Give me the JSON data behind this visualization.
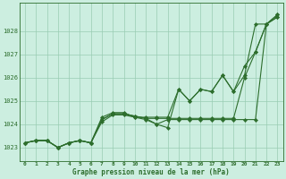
{
  "title": "Graphe pression niveau de la mer (hPa)",
  "background_color": "#cceee0",
  "grid_color": "#99ccb3",
  "line_color": "#2d6e2d",
  "xlim": [
    -0.5,
    23.5
  ],
  "ylim": [
    1022.4,
    1029.2
  ],
  "yticks": [
    1023,
    1024,
    1025,
    1026,
    1027,
    1028
  ],
  "xticks": [
    0,
    1,
    2,
    3,
    4,
    5,
    6,
    7,
    8,
    9,
    10,
    11,
    12,
    13,
    14,
    15,
    16,
    17,
    18,
    19,
    20,
    21,
    22,
    23
  ],
  "series": [
    [
      1023.2,
      1023.3,
      1023.3,
      1023.0,
      1023.2,
      1023.3,
      1023.2,
      1024.3,
      1024.5,
      1024.5,
      1024.3,
      1024.3,
      1024.3,
      1024.3,
      1025.5,
      1025.0,
      1025.5,
      1025.4,
      1026.1,
      1025.4,
      1026.1,
      1028.3,
      1028.3,
      1028.6
    ],
    [
      1023.2,
      1023.3,
      1023.3,
      1023.0,
      1023.2,
      1023.3,
      1023.2,
      1024.1,
      1024.4,
      1024.4,
      1024.3,
      1024.2,
      1024.0,
      1023.85,
      1025.5,
      1025.0,
      1025.5,
      1025.4,
      1026.1,
      1025.4,
      1026.5,
      1027.1,
      1028.3,
      1028.6
    ],
    [
      1023.2,
      1023.3,
      1023.3,
      1023.0,
      1023.2,
      1023.3,
      1023.2,
      1024.2,
      1024.45,
      1024.45,
      1024.35,
      1024.25,
      1024.25,
      1024.25,
      1024.25,
      1024.25,
      1024.25,
      1024.25,
      1024.25,
      1024.25,
      1026.0,
      1027.1,
      1028.3,
      1028.7
    ],
    [
      1023.2,
      1023.3,
      1023.3,
      1023.0,
      1023.2,
      1023.3,
      1023.2,
      1024.2,
      1024.45,
      1024.45,
      1024.35,
      1024.25,
      1024.0,
      1024.2,
      1024.2,
      1024.2,
      1024.2,
      1024.2,
      1024.2,
      1024.2,
      1024.2,
      1024.2,
      1028.3,
      1028.7
    ]
  ]
}
